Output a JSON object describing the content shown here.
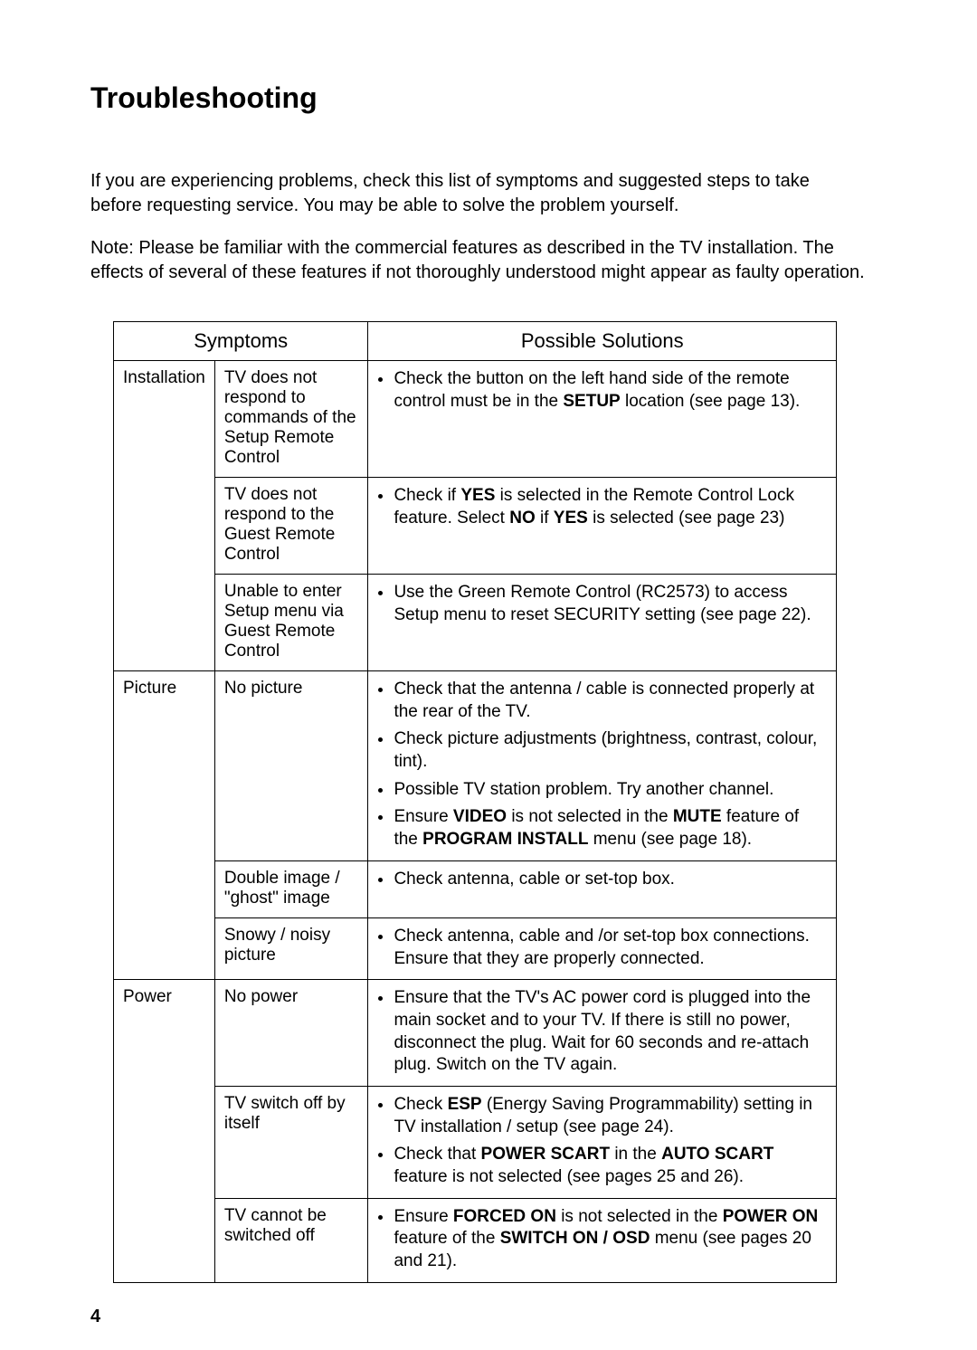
{
  "page": {
    "title": "Troubleshooting",
    "intro": "If you are experiencing problems, check this list of symptoms and suggested steps to take before requesting service.  You may be able to solve the problem yourself.",
    "note": "Note: Please be familiar with the commercial features as described in the TV installation. The effects of several of these features if not thoroughly understood might appear as faulty operation.",
    "page_number": "4",
    "text_color": "#000000",
    "background_color": "#ffffff",
    "border_color": "#000000",
    "title_fontsize": 32,
    "body_fontsize": 20
  },
  "table": {
    "header": {
      "symptoms": "Symptoms",
      "solutions": "Possible Solutions"
    },
    "rows": [
      {
        "category": "Installation",
        "cat_rowspan": 3,
        "symptom": "TV does not respond to commands of the Setup Remote Control",
        "solutions_html": "<li>Check the button on the left hand side of the remote control must be in the <b>SETUP</b> location (see page 13).</li>"
      },
      {
        "symptom": "TV does not respond to the Guest Remote Control",
        "solutions_html": "<li>Check if <b>YES</b> is selected in the Remote Control Lock feature. Select <b>NO</b> if <b>YES</b> is selected (see page 23)</li>"
      },
      {
        "symptom": "Unable to enter Setup menu via Guest Remote Control",
        "solutions_html": "<li>Use the Green Remote Control (RC2573) to access Setup menu to reset SECURITY setting (see page 22).</li>"
      },
      {
        "category": "Picture",
        "cat_rowspan": 3,
        "symptom": "No picture",
        "solutions_html": "<li>Check that the antenna / cable is connected properly at the rear of the TV.</li><li>Check picture adjustments (brightness, contrast, colour, tint).</li><li>Possible TV station problem. Try another channel.</li><li>Ensure <b>VIDEO</b> is not selected in the <b>MUTE</b> feature of the <b>PROGRAM INSTALL</b> menu (see page 18).</li>"
      },
      {
        "symptom": "Double image / \"ghost\" image",
        "solutions_html": "<li>Check antenna, cable or set-top box.</li>"
      },
      {
        "symptom": "Snowy / noisy picture",
        "solutions_html": "<li>Check antenna, cable and /or set-top box connections. Ensure that they are properly connected.</li>"
      },
      {
        "category": "Power",
        "cat_rowspan": 3,
        "symptom": "No power",
        "solutions_html": "<li>Ensure that the TV's AC power cord is plugged into the main socket and to your TV. If there is still no power, disconnect the plug.  Wait for 60 seconds and re-attach plug. Switch on the TV again.</li>"
      },
      {
        "symptom": "TV switch off by itself",
        "solutions_html": "<li>Check <b>ESP</b> (Energy Saving Programmability) setting in TV installation / setup (see page 24).</li><li>Check that <b>POWER SCART</b> in the <b>AUTO SCART</b> feature is not selected (see pages 25 and 26).</li>"
      },
      {
        "symptom": "TV cannot be switched off",
        "solutions_html": "<li>Ensure <b>FORCED ON</b> is not selected in the <b>POWER ON</b> feature of the <b>SWITCH ON / OSD</b> menu (see pages 20 and 21).</li>"
      }
    ]
  }
}
